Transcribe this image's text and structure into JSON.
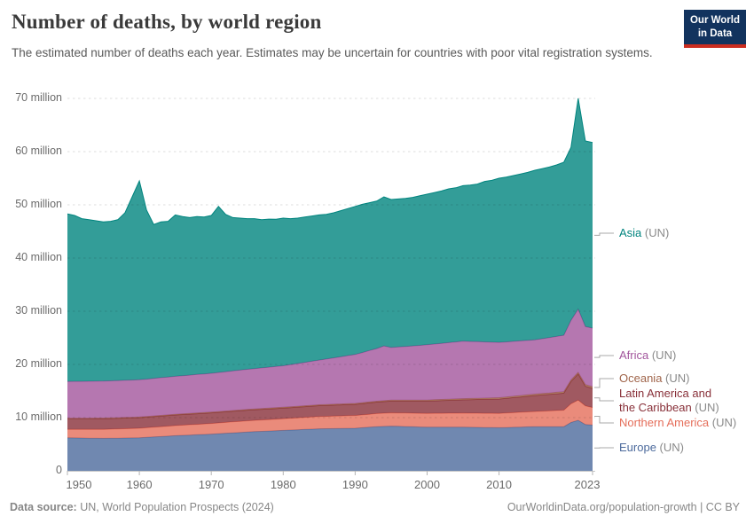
{
  "header": {
    "title": "Number of deaths, by world region",
    "subtitle": "The estimated number of deaths each year. Estimates may be uncertain for countries with poor vital registration systems."
  },
  "logo": {
    "line1": "Our World",
    "line2": "in Data",
    "bg_color": "#12335E",
    "bar_color": "#CB2D20"
  },
  "footer": {
    "source_label": "Data source:",
    "source_text": " UN, World Population Prospects (2024)",
    "credit": "OurWorldinData.org/population-growth | CC BY"
  },
  "chart_data": {
    "type": "area",
    "stacked": true,
    "title": "Number of deaths, by world region",
    "unit": "million deaths per year",
    "grid": true,
    "legend_position": "right",
    "ylim": [
      0,
      70
    ],
    "years": {
      "from": 1950,
      "to": 2023,
      "step": 1
    },
    "x_ticks": [
      1950,
      1960,
      1970,
      1980,
      1990,
      2000,
      2010,
      2023
    ],
    "y_ticks": [
      {
        "v": 0,
        "label": "0"
      },
      {
        "v": 10,
        "label": "10 million"
      },
      {
        "v": 20,
        "label": "20 million"
      },
      {
        "v": 30,
        "label": "30 million"
      },
      {
        "v": 40,
        "label": "40 million"
      },
      {
        "v": 50,
        "label": "50 million"
      },
      {
        "v": 60,
        "label": "60 million"
      },
      {
        "v": 70,
        "label": "70 million"
      }
    ],
    "suffix": "(UN)",
    "series": [
      {
        "name": "Europe",
        "legend_lines": [
          "Europe"
        ],
        "color": "#4C6A9C",
        "values": [
          6.2,
          6.18,
          6.16,
          6.14,
          6.12,
          6.1,
          6.12,
          6.14,
          6.16,
          6.18,
          6.2,
          6.28,
          6.36,
          6.44,
          6.52,
          6.6,
          6.66,
          6.72,
          6.78,
          6.84,
          6.9,
          6.98,
          7.06,
          7.14,
          7.22,
          7.3,
          7.36,
          7.42,
          7.48,
          7.54,
          7.6,
          7.66,
          7.72,
          7.78,
          7.84,
          7.9,
          7.92,
          7.94,
          7.96,
          7.98,
          8.0,
          8.1,
          8.2,
          8.3,
          8.35,
          8.4,
          8.36,
          8.32,
          8.28,
          8.24,
          8.2,
          8.2,
          8.2,
          8.2,
          8.2,
          8.2,
          8.18,
          8.16,
          8.14,
          8.12,
          8.1,
          8.14,
          8.18,
          8.22,
          8.26,
          8.3,
          8.3,
          8.3,
          8.3,
          8.3,
          9.1,
          9.5,
          8.7,
          8.6
        ]
      },
      {
        "name": "Northern America",
        "legend_lines": [
          "Northern America"
        ],
        "color": "#E56E5A",
        "values": [
          1.6,
          1.62,
          1.64,
          1.66,
          1.68,
          1.7,
          1.72,
          1.74,
          1.76,
          1.78,
          1.8,
          1.82,
          1.84,
          1.86,
          1.88,
          1.9,
          1.92,
          1.94,
          1.96,
          1.98,
          2.0,
          2.02,
          2.04,
          2.06,
          2.08,
          2.1,
          2.12,
          2.14,
          2.16,
          2.18,
          2.2,
          2.22,
          2.24,
          2.26,
          2.28,
          2.3,
          2.32,
          2.34,
          2.36,
          2.38,
          2.4,
          2.42,
          2.44,
          2.46,
          2.48,
          2.5,
          2.52,
          2.54,
          2.56,
          2.58,
          2.6,
          2.61,
          2.62,
          2.63,
          2.64,
          2.65,
          2.66,
          2.67,
          2.68,
          2.69,
          2.7,
          2.73,
          2.76,
          2.79,
          2.82,
          2.85,
          2.91,
          2.97,
          3.04,
          3.1,
          3.5,
          3.8,
          3.5,
          3.3
        ]
      },
      {
        "name": "Latin America and the Caribbean",
        "legend_lines": [
          "Latin America and",
          "the Caribbean"
        ],
        "color": "#883039",
        "values": [
          2,
          2,
          2,
          2,
          2,
          2,
          2,
          2,
          2,
          2,
          2,
          2,
          2,
          2,
          2,
          2,
          2,
          2,
          2,
          2,
          2,
          2,
          2,
          2,
          2,
          2,
          2,
          2,
          2,
          2,
          2.0,
          2.01,
          2.02,
          2.03,
          2.04,
          2.05,
          2.06,
          2.07,
          2.08,
          2.09,
          2.1,
          2.12,
          2.14,
          2.16,
          2.18,
          2.2,
          2.22,
          2.24,
          2.26,
          2.28,
          2.3,
          2.34,
          2.38,
          2.42,
          2.46,
          2.5,
          2.54,
          2.58,
          2.62,
          2.66,
          2.7,
          2.76,
          2.82,
          2.88,
          2.94,
          3.0,
          3.05,
          3.1,
          3.15,
          3.2,
          4.2,
          4.9,
          3.7,
          3.6
        ]
      },
      {
        "name": "Oceania",
        "legend_lines": [
          "Oceania"
        ],
        "color": "#A0654B",
        "values": [
          0.1,
          0.1,
          0.1,
          0.1,
          0.11,
          0.11,
          0.11,
          0.11,
          0.11,
          0.11,
          0.11,
          0.11,
          0.12,
          0.12,
          0.12,
          0.12,
          0.12,
          0.12,
          0.13,
          0.13,
          0.13,
          0.13,
          0.13,
          0.13,
          0.14,
          0.14,
          0.14,
          0.14,
          0.15,
          0.15,
          0.15,
          0.15,
          0.15,
          0.16,
          0.16,
          0.16,
          0.16,
          0.16,
          0.16,
          0.17,
          0.17,
          0.17,
          0.17,
          0.17,
          0.18,
          0.18,
          0.18,
          0.18,
          0.19,
          0.19,
          0.2,
          0.21,
          0.21,
          0.21,
          0.22,
          0.22,
          0.22,
          0.23,
          0.23,
          0.24,
          0.25,
          0.25,
          0.25,
          0.26,
          0.26,
          0.26,
          0.27,
          0.27,
          0.27,
          0.28,
          0.29,
          0.3,
          0.31,
          0.32
        ]
      },
      {
        "name": "Africa",
        "legend_lines": [
          "Africa"
        ],
        "color": "#A2559C",
        "values": [
          6.9,
          6.91,
          6.92,
          6.93,
          6.94,
          6.95,
          6.96,
          6.97,
          6.98,
          6.99,
          7.0,
          7.03,
          7.06,
          7.09,
          7.12,
          7.15,
          7.18,
          7.21,
          7.24,
          7.27,
          7.3,
          7.35,
          7.4,
          7.45,
          7.5,
          7.55,
          7.6,
          7.65,
          7.7,
          7.75,
          7.8,
          7.92,
          8.04,
          8.16,
          8.28,
          8.4,
          8.56,
          8.72,
          8.88,
          9.04,
          9.2,
          9.43,
          9.66,
          9.9,
          10.3,
          9.9,
          10.0,
          10.1,
          10.2,
          10.3,
          10.4,
          10.48,
          10.56,
          10.64,
          10.72,
          10.8,
          10.72,
          10.64,
          10.56,
          10.48,
          10.4,
          10.36,
          10.32,
          10.28,
          10.24,
          10.2,
          10.3,
          10.4,
          10.5,
          10.6,
          11.2,
          11.9,
          10.9,
          11.0
        ]
      },
      {
        "name": "Asia",
        "legend_lines": [
          "Asia"
        ],
        "color": "#00847E",
        "values": [
          31.5,
          31.19,
          30.58,
          30.37,
          30.15,
          29.94,
          29.99,
          30.24,
          31.49,
          34.44,
          37.39,
          31.76,
          28.92,
          29.29,
          29.26,
          30.33,
          29.92,
          29.61,
          29.69,
          29.48,
          29.67,
          31.22,
          29.57,
          28.82,
          28.56,
          28.31,
          28.18,
          27.85,
          27.82,
          27.68,
          27.75,
          27.44,
          27.33,
          27.32,
          27.3,
          27.29,
          27.18,
          27.27,
          27.46,
          27.64,
          27.83,
          27.86,
          27.79,
          27.71,
          28.01,
          27.82,
          27.82,
          27.82,
          27.91,
          28.11,
          28.3,
          28.46,
          28.63,
          28.9,
          28.96,
          29.23,
          29.38,
          29.62,
          30.17,
          30.41,
          30.85,
          30.96,
          31.17,
          31.37,
          31.58,
          31.89,
          31.97,
          32.06,
          32.24,
          32.52,
          32.51,
          39.6,
          34.89,
          34.88
        ]
      }
    ]
  }
}
